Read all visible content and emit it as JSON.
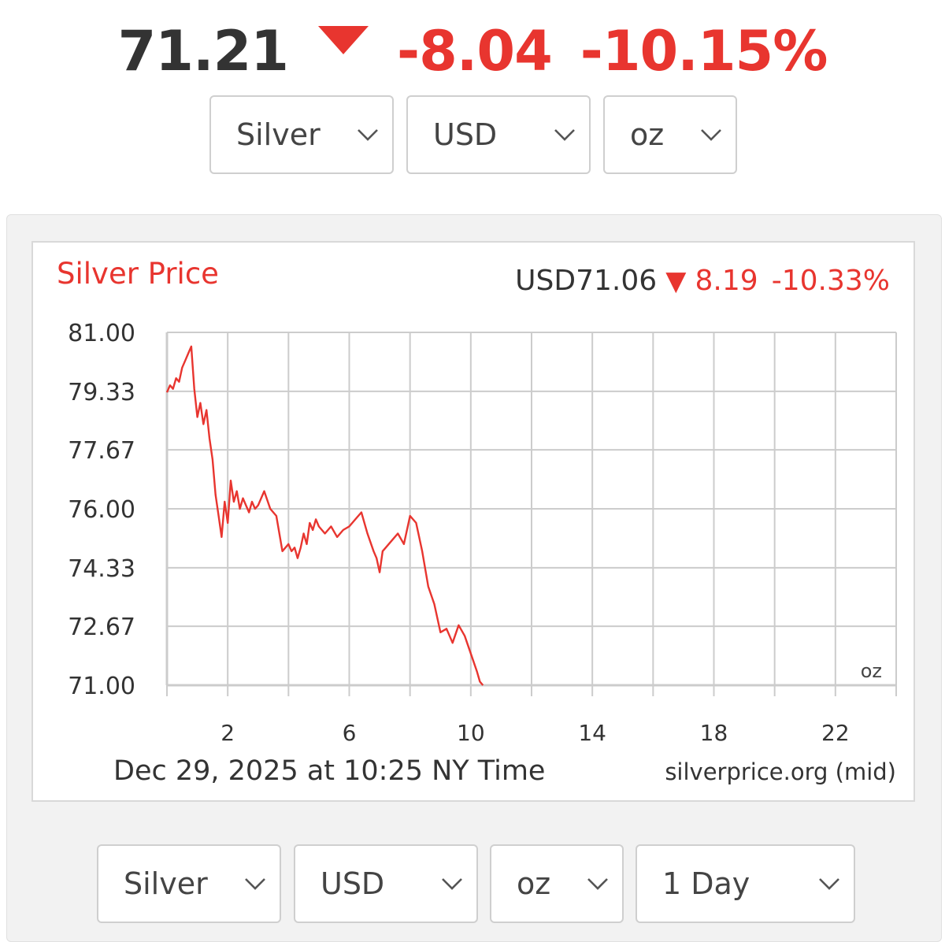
{
  "header": {
    "price": "71.21",
    "change": "-8.04",
    "change_pct": "-10.15%",
    "down_color": "#e8352f"
  },
  "top_selectors": [
    {
      "value": "Silver",
      "icon": "chevron-down-icon"
    },
    {
      "value": "USD",
      "icon": "chevron-down-icon"
    },
    {
      "value": "oz",
      "icon": "chevron-down-icon"
    }
  ],
  "bottom_selectors": [
    {
      "value": "Silver",
      "icon": "chevron-down-icon"
    },
    {
      "value": "USD",
      "icon": "chevron-down-icon"
    },
    {
      "value": "oz",
      "icon": "chevron-down-icon"
    },
    {
      "value": "1 Day",
      "icon": "chevron-down-icon"
    }
  ],
  "chart_data": {
    "type": "line",
    "title": "Silver Price",
    "summary": {
      "price": "USD71.06",
      "change": "8.19",
      "change_pct": "-10.33%",
      "direction": "down"
    },
    "unit_label": "oz",
    "footer_left": "Dec 29, 2025 at 10:25 NY Time",
    "footer_right": "silverprice.org (mid)",
    "xlim": [
      0,
      24
    ],
    "ylim": [
      71.0,
      81.0
    ],
    "x_ticks": [
      2,
      6,
      10,
      14,
      18,
      22
    ],
    "x_tick_labels": [
      "2",
      "6",
      "10",
      "14",
      "18",
      "22"
    ],
    "y_ticks": [
      71.0,
      72.67,
      74.33,
      76.0,
      77.67,
      79.33,
      81.0
    ],
    "y_tick_labels": [
      "71.00",
      "72.67",
      "74.33",
      "76.00",
      "77.67",
      "79.33",
      "81.00"
    ],
    "grid": true,
    "line_color": "#e8352f",
    "series": [
      {
        "x": [
          0.0,
          0.1,
          0.2,
          0.3,
          0.4,
          0.5,
          0.6,
          0.7,
          0.8,
          0.9,
          1.0,
          1.1,
          1.2,
          1.3,
          1.4,
          1.5,
          1.6,
          1.7,
          1.8,
          1.9,
          2.0,
          2.1,
          2.2,
          2.3,
          2.4,
          2.5,
          2.6,
          2.7,
          2.8,
          2.9,
          3.0,
          3.2,
          3.4,
          3.6,
          3.8,
          4.0,
          4.1,
          4.2,
          4.3,
          4.4,
          4.5,
          4.6,
          4.7,
          4.8,
          4.9,
          5.0,
          5.2,
          5.4,
          5.6,
          5.8,
          6.0,
          6.2,
          6.4,
          6.6,
          6.8,
          6.9,
          7.0,
          7.1,
          7.2,
          7.4,
          7.6,
          7.8,
          8.0,
          8.2,
          8.4,
          8.6,
          8.8,
          9.0,
          9.2,
          9.4,
          9.6,
          9.8,
          10.0,
          10.2,
          10.3,
          10.4
        ],
        "values": [
          79.3,
          79.5,
          79.4,
          79.7,
          79.6,
          80.0,
          80.2,
          80.4,
          80.6,
          79.4,
          78.6,
          79.0,
          78.4,
          78.8,
          78.0,
          77.4,
          76.4,
          75.8,
          75.2,
          76.2,
          75.6,
          76.8,
          76.2,
          76.5,
          76.0,
          76.3,
          76.1,
          75.9,
          76.2,
          76.0,
          76.1,
          76.5,
          76.0,
          75.8,
          74.8,
          75.0,
          74.8,
          74.9,
          74.6,
          74.9,
          75.3,
          75.0,
          75.6,
          75.4,
          75.7,
          75.5,
          75.3,
          75.5,
          75.2,
          75.4,
          75.5,
          75.7,
          75.9,
          75.3,
          74.8,
          74.6,
          74.2,
          74.8,
          74.9,
          75.1,
          75.3,
          75.0,
          75.8,
          75.6,
          74.8,
          73.8,
          73.3,
          72.5,
          72.6,
          72.2,
          72.7,
          72.4,
          71.9,
          71.4,
          71.1,
          71.0
        ]
      }
    ]
  }
}
